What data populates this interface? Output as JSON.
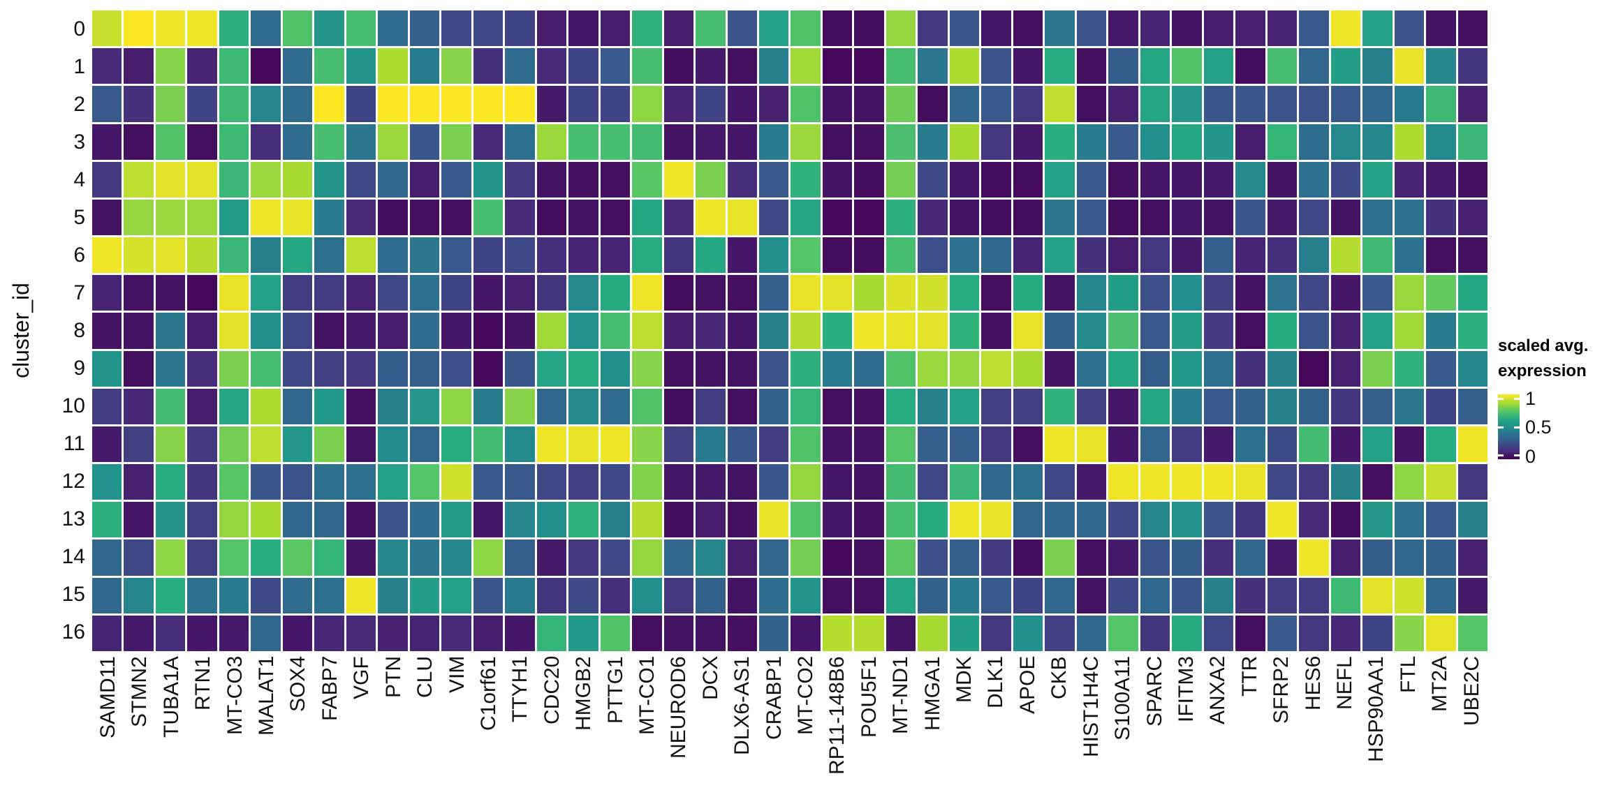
{
  "figure_type": "single-cell cluster gene expression heatmap",
  "colors": {
    "background": "#ffffff",
    "cell_gap": "#ffffff",
    "axis_text": "#111111",
    "legend_text": "#000000"
  },
  "legend": {
    "title_line1": "scaled avg.",
    "title_line2": "expression",
    "ticks": [
      "1",
      "0.5",
      "0"
    ]
  },
  "chart_data": {
    "type": "heatmap",
    "title": "",
    "xlabel": "",
    "ylabel": "cluster_id",
    "legend_title": "scaled avg. expression",
    "colormap": "viridis",
    "value_range": [
      0,
      1
    ],
    "colormap_anchors": [
      {
        "t": 0.0,
        "color": "#440154"
      },
      {
        "t": 0.125,
        "color": "#472d7b"
      },
      {
        "t": 0.25,
        "color": "#3b528b"
      },
      {
        "t": 0.375,
        "color": "#2c718e"
      },
      {
        "t": 0.5,
        "color": "#21908d"
      },
      {
        "t": 0.625,
        "color": "#27ad81"
      },
      {
        "t": 0.75,
        "color": "#5cc863"
      },
      {
        "t": 0.875,
        "color": "#aadc32"
      },
      {
        "t": 1.0,
        "color": "#fde725"
      }
    ],
    "genes": [
      "SAMD11",
      "STMN2",
      "TUBA1A",
      "RTN1",
      "MT-CO3",
      "MALAT1",
      "SOX4",
      "FABP7",
      "VGF",
      "PTN",
      "CLU",
      "VIM",
      "C1orf61",
      "TTYH1",
      "CDC20",
      "HMGB2",
      "PTTG1",
      "MT-CO1",
      "NEUROD6",
      "DCX",
      "DLX6-AS1",
      "CRABP1",
      "MT-CO2",
      "RP11-148B6",
      "POU5F1",
      "MT-ND1",
      "HMGA1",
      "MDK",
      "DLK1",
      "APOE",
      "CKB",
      "HIST1H4C",
      "S100A11",
      "SPARC",
      "IFITM3",
      "ANXA2",
      "TTR",
      "SFRP2",
      "HES6",
      "NEFL",
      "HSP90AA1",
      "FTL",
      "MT2A",
      "UBE2C"
    ],
    "clusters": [
      "0",
      "1",
      "2",
      "3",
      "4",
      "5",
      "6",
      "7",
      "8",
      "9",
      "10",
      "11",
      "12",
      "13",
      "14",
      "15",
      "16"
    ],
    "values": [
      [
        0.92,
        1.0,
        0.98,
        0.98,
        0.64,
        0.35,
        0.72,
        0.52,
        0.7,
        0.35,
        0.3,
        0.22,
        0.22,
        0.2,
        0.08,
        0.06,
        0.08,
        0.65,
        0.08,
        0.7,
        0.25,
        0.57,
        0.72,
        0.03,
        0.03,
        0.84,
        0.16,
        0.27,
        0.06,
        0.04,
        0.4,
        0.25,
        0.07,
        0.1,
        0.05,
        0.08,
        0.09,
        0.1,
        0.28,
        0.98,
        0.57,
        0.25,
        0.05,
        0.04
      ],
      [
        0.12,
        0.08,
        0.82,
        0.1,
        0.68,
        0.02,
        0.35,
        0.7,
        0.52,
        0.88,
        0.42,
        0.82,
        0.14,
        0.35,
        0.12,
        0.2,
        0.28,
        0.7,
        0.03,
        0.07,
        0.04,
        0.43,
        0.86,
        0.02,
        0.02,
        0.7,
        0.4,
        0.88,
        0.26,
        0.06,
        0.62,
        0.04,
        0.29,
        0.6,
        0.72,
        0.57,
        0.03,
        0.7,
        0.33,
        0.56,
        0.43,
        0.97,
        0.46,
        0.15
      ],
      [
        0.28,
        0.14,
        0.8,
        0.2,
        0.68,
        0.45,
        0.35,
        1.0,
        0.2,
        1.0,
        1.0,
        1.0,
        1.0,
        1.0,
        0.07,
        0.2,
        0.2,
        0.83,
        0.1,
        0.2,
        0.06,
        0.09,
        0.72,
        0.05,
        0.05,
        0.78,
        0.03,
        0.33,
        0.28,
        0.17,
        0.91,
        0.04,
        0.09,
        0.58,
        0.53,
        0.27,
        0.27,
        0.25,
        0.25,
        0.28,
        0.34,
        0.41,
        0.68,
        0.09
      ],
      [
        0.06,
        0.04,
        0.72,
        0.04,
        0.68,
        0.13,
        0.35,
        0.7,
        0.4,
        0.85,
        0.27,
        0.8,
        0.12,
        0.37,
        0.85,
        0.7,
        0.7,
        0.69,
        0.05,
        0.07,
        0.06,
        0.42,
        0.85,
        0.04,
        0.04,
        0.71,
        0.42,
        0.87,
        0.16,
        0.07,
        0.63,
        0.42,
        0.28,
        0.5,
        0.6,
        0.52,
        0.08,
        0.66,
        0.36,
        0.47,
        0.46,
        0.88,
        0.48,
        0.67
      ],
      [
        0.17,
        0.9,
        0.96,
        0.96,
        0.67,
        0.85,
        0.87,
        0.52,
        0.22,
        0.34,
        0.08,
        0.28,
        0.52,
        0.16,
        0.05,
        0.04,
        0.04,
        0.74,
        0.98,
        0.8,
        0.13,
        0.28,
        0.65,
        0.05,
        0.03,
        0.79,
        0.22,
        0.06,
        0.03,
        0.03,
        0.57,
        0.28,
        0.04,
        0.06,
        0.06,
        0.07,
        0.47,
        0.05,
        0.38,
        0.22,
        0.57,
        0.1,
        0.07,
        0.04
      ],
      [
        0.05,
        0.84,
        0.85,
        0.85,
        0.55,
        0.98,
        0.97,
        0.42,
        0.12,
        0.03,
        0.04,
        0.04,
        0.7,
        0.12,
        0.03,
        0.05,
        0.04,
        0.6,
        0.12,
        0.98,
        0.97,
        0.22,
        0.58,
        0.02,
        0.02,
        0.64,
        0.11,
        0.05,
        0.03,
        0.03,
        0.4,
        0.28,
        0.03,
        0.04,
        0.06,
        0.05,
        0.27,
        0.07,
        0.21,
        0.05,
        0.37,
        0.38,
        0.14,
        0.09
      ],
      [
        0.98,
        0.94,
        0.96,
        0.89,
        0.67,
        0.43,
        0.6,
        0.37,
        0.9,
        0.35,
        0.4,
        0.28,
        0.2,
        0.22,
        0.13,
        0.1,
        0.1,
        0.62,
        0.15,
        0.6,
        0.06,
        0.5,
        0.73,
        0.03,
        0.03,
        0.7,
        0.24,
        0.38,
        0.34,
        0.1,
        0.57,
        0.14,
        0.08,
        0.16,
        0.07,
        0.3,
        0.1,
        0.13,
        0.43,
        0.89,
        0.68,
        0.38,
        0.04,
        0.04
      ],
      [
        0.1,
        0.05,
        0.05,
        0.02,
        0.97,
        0.57,
        0.18,
        0.18,
        0.1,
        0.21,
        0.38,
        0.2,
        0.06,
        0.09,
        0.15,
        0.47,
        0.61,
        0.98,
        0.03,
        0.05,
        0.04,
        0.3,
        0.97,
        0.96,
        0.87,
        0.95,
        0.93,
        0.62,
        0.04,
        0.61,
        0.05,
        0.46,
        0.55,
        0.24,
        0.49,
        0.19,
        0.05,
        0.39,
        0.21,
        0.06,
        0.28,
        0.85,
        0.76,
        0.6
      ],
      [
        0.05,
        0.05,
        0.4,
        0.08,
        0.96,
        0.5,
        0.21,
        0.05,
        0.07,
        0.08,
        0.35,
        0.06,
        0.02,
        0.05,
        0.86,
        0.51,
        0.7,
        0.9,
        0.08,
        0.11,
        0.06,
        0.43,
        0.89,
        0.63,
        0.98,
        0.97,
        0.96,
        0.65,
        0.04,
        0.97,
        0.32,
        0.47,
        0.71,
        0.28,
        0.56,
        0.17,
        0.04,
        0.61,
        0.26,
        0.09,
        0.57,
        0.86,
        0.42,
        0.64
      ],
      [
        0.52,
        0.04,
        0.4,
        0.13,
        0.8,
        0.7,
        0.22,
        0.19,
        0.16,
        0.29,
        0.3,
        0.24,
        0.02,
        0.27,
        0.58,
        0.62,
        0.5,
        0.82,
        0.04,
        0.05,
        0.05,
        0.26,
        0.64,
        0.42,
        0.36,
        0.72,
        0.85,
        0.84,
        0.9,
        0.87,
        0.05,
        0.37,
        0.6,
        0.29,
        0.54,
        0.37,
        0.14,
        0.44,
        0.02,
        0.09,
        0.8,
        0.65,
        0.28,
        0.46
      ],
      [
        0.18,
        0.11,
        0.69,
        0.08,
        0.59,
        0.88,
        0.34,
        0.54,
        0.04,
        0.43,
        0.53,
        0.83,
        0.42,
        0.82,
        0.34,
        0.47,
        0.35,
        0.72,
        0.03,
        0.18,
        0.04,
        0.32,
        0.66,
        0.04,
        0.04,
        0.62,
        0.44,
        0.57,
        0.19,
        0.19,
        0.65,
        0.19,
        0.06,
        0.6,
        0.42,
        0.28,
        0.32,
        0.44,
        0.31,
        0.15,
        0.3,
        0.4,
        0.2,
        0.3
      ],
      [
        0.07,
        0.19,
        0.82,
        0.17,
        0.79,
        0.9,
        0.53,
        0.8,
        0.05,
        0.48,
        0.33,
        0.62,
        0.69,
        0.48,
        0.98,
        0.97,
        0.98,
        0.82,
        0.19,
        0.41,
        0.27,
        0.18,
        0.72,
        0.05,
        0.05,
        0.73,
        0.3,
        0.3,
        0.16,
        0.04,
        0.98,
        0.97,
        0.06,
        0.33,
        0.18,
        0.07,
        0.38,
        0.23,
        0.69,
        0.06,
        0.57,
        0.05,
        0.62,
        0.98
      ],
      [
        0.51,
        0.09,
        0.62,
        0.15,
        0.74,
        0.27,
        0.25,
        0.37,
        0.37,
        0.57,
        0.73,
        0.93,
        0.28,
        0.28,
        0.21,
        0.19,
        0.22,
        0.81,
        0.06,
        0.07,
        0.05,
        0.27,
        0.84,
        0.06,
        0.05,
        0.69,
        0.21,
        0.67,
        0.34,
        0.38,
        0.21,
        0.07,
        0.98,
        0.98,
        0.98,
        0.98,
        0.97,
        0.21,
        0.17,
        0.44,
        0.04,
        0.83,
        0.92,
        0.16
      ],
      [
        0.64,
        0.06,
        0.52,
        0.19,
        0.84,
        0.87,
        0.34,
        0.33,
        0.04,
        0.26,
        0.35,
        0.55,
        0.06,
        0.45,
        0.5,
        0.65,
        0.44,
        0.89,
        0.03,
        0.08,
        0.04,
        0.97,
        0.72,
        0.06,
        0.04,
        0.7,
        0.61,
        0.98,
        0.97,
        0.33,
        0.34,
        0.34,
        0.21,
        0.46,
        0.51,
        0.25,
        0.15,
        0.98,
        0.12,
        0.03,
        0.53,
        0.37,
        0.28,
        0.44
      ],
      [
        0.33,
        0.21,
        0.83,
        0.19,
        0.73,
        0.63,
        0.75,
        0.66,
        0.05,
        0.46,
        0.4,
        0.46,
        0.83,
        0.3,
        0.07,
        0.16,
        0.22,
        0.84,
        0.34,
        0.46,
        0.08,
        0.33,
        0.79,
        0.02,
        0.04,
        0.75,
        0.24,
        0.3,
        0.17,
        0.03,
        0.8,
        0.04,
        0.07,
        0.26,
        0.29,
        0.13,
        0.33,
        0.07,
        0.98,
        0.08,
        0.29,
        0.34,
        0.32,
        0.09
      ],
      [
        0.34,
        0.46,
        0.63,
        0.38,
        0.42,
        0.22,
        0.35,
        0.37,
        0.98,
        0.44,
        0.56,
        0.57,
        0.27,
        0.41,
        0.15,
        0.22,
        0.13,
        0.5,
        0.16,
        0.32,
        0.05,
        0.36,
        0.52,
        0.04,
        0.04,
        0.58,
        0.32,
        0.42,
        0.28,
        0.2,
        0.34,
        0.05,
        0.22,
        0.34,
        0.27,
        0.44,
        0.14,
        0.18,
        0.18,
        0.68,
        0.96,
        0.93,
        0.34,
        0.07
      ],
      [
        0.1,
        0.07,
        0.13,
        0.06,
        0.07,
        0.34,
        0.06,
        0.11,
        0.12,
        0.09,
        0.1,
        0.12,
        0.08,
        0.06,
        0.66,
        0.54,
        0.72,
        0.04,
        0.05,
        0.05,
        0.04,
        0.32,
        0.06,
        0.89,
        0.89,
        0.05,
        0.87,
        0.56,
        0.16,
        0.5,
        0.19,
        0.34,
        0.73,
        0.15,
        0.61,
        0.21,
        0.04,
        0.28,
        0.16,
        0.11,
        0.2,
        0.82,
        0.97,
        0.73
      ]
    ]
  }
}
